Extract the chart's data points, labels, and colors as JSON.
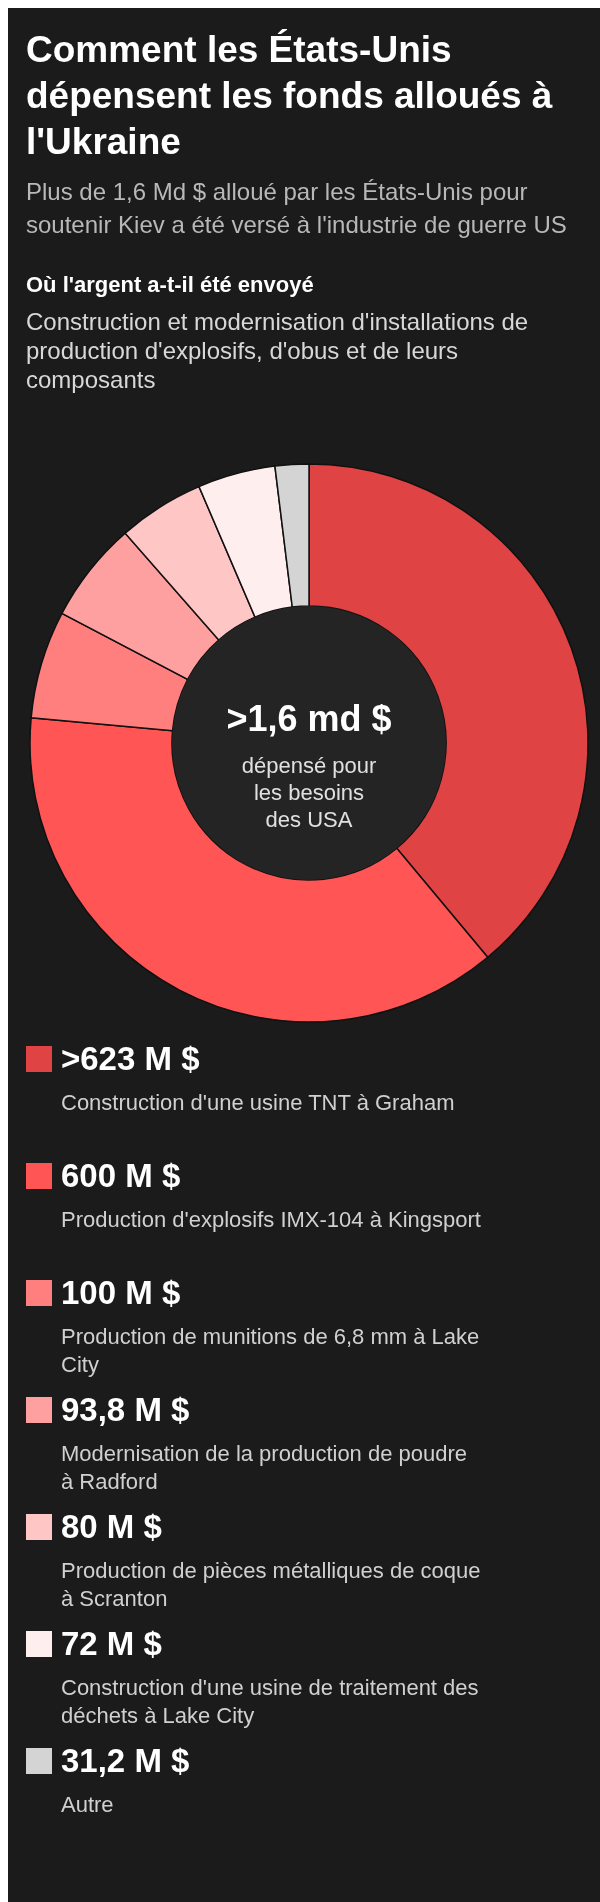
{
  "chart_data": {
    "type": "donut",
    "title": "Comment les États-Unis dépensent les fonds alloués à l'Ukraine",
    "subtitle": "Plus de 1,6 Md $ alloué par les États-Unis pour soutenir Kiev a été versé à l'industrie de guerre US",
    "annotations": [
      "Où l'argent a-t-il été envoyé",
      "Construction et modernisation d'installations de production d'explosifs, d'obus et de leurs composants",
      ">1,6 md $",
      "dépensé pour les besoins des USA"
    ],
    "categories": [
      "Construction d'une usine TNT à Graham",
      "Production d'explosifs IMX-104 à Kingsport",
      "Production de munitions de 6,8 mm à Lake City",
      "Modernisation de la production de poudre à Radford",
      "Production de pièces métalliques de coque à Scranton",
      "Construction d'une usine de traitement des déchets à Lake City",
      "Autre"
    ],
    "values": [
      623,
      600,
      100,
      93.8,
      80,
      72,
      31.2
    ],
    "value_labels": [
      ">623 M $",
      "600 M $",
      "100 M $",
      "93,8 M $",
      "80 M $",
      "72 M $",
      "31,2 M $"
    ],
    "colors": [
      "#e04343",
      "#ff5555",
      "#ff7f7f",
      "#ffa0a0",
      "#ffc6c6",
      "#ffeeee",
      "#d4d4d4"
    ],
    "legend": "bottom"
  }
}
